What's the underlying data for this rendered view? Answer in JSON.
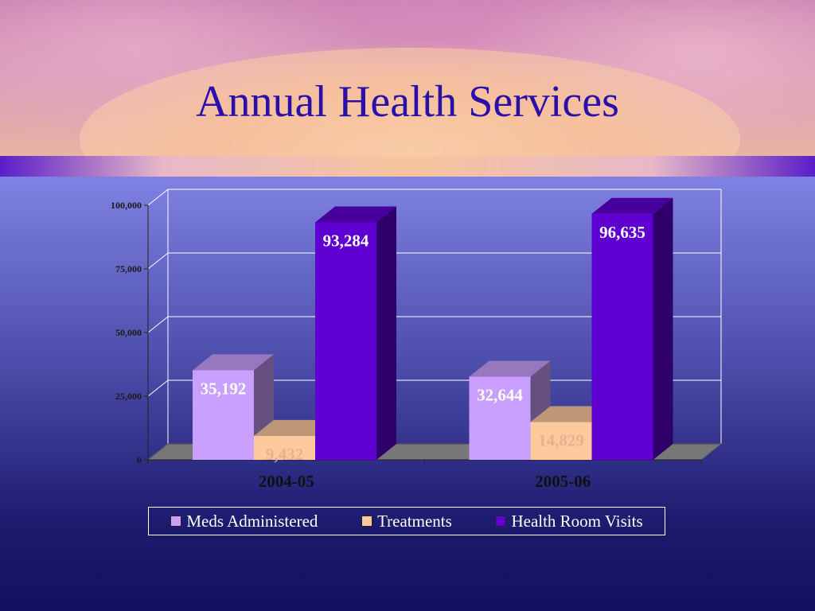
{
  "slide": {
    "title": "Annual Health Services"
  },
  "chart_data": {
    "type": "bar",
    "title": "",
    "xlabel": "",
    "ylabel": "",
    "ylim": [
      0,
      100000
    ],
    "yticks": [
      0,
      25000,
      50000,
      75000,
      100000
    ],
    "ytick_labels": [
      "0",
      "25,000",
      "50,000",
      "75,000",
      "100,000"
    ],
    "categories": [
      "2004-05",
      "2005-06"
    ],
    "series": [
      {
        "name": "Meds Administered",
        "values": [
          35192,
          32644
        ],
        "labels": [
          "35,192",
          "32,644"
        ],
        "color": "#c9a0ff"
      },
      {
        "name": "Treatments",
        "values": [
          9432,
          14829
        ],
        "labels": [
          "9,432",
          "14,829"
        ],
        "color": "#fcc99d"
      },
      {
        "name": "Health Room Visits",
        "values": [
          93284,
          96635
        ],
        "labels": [
          "93,284",
          "96,635"
        ],
        "color": "#5e00d2"
      }
    ],
    "grid": true,
    "legend_position": "bottom",
    "three_d": true
  }
}
